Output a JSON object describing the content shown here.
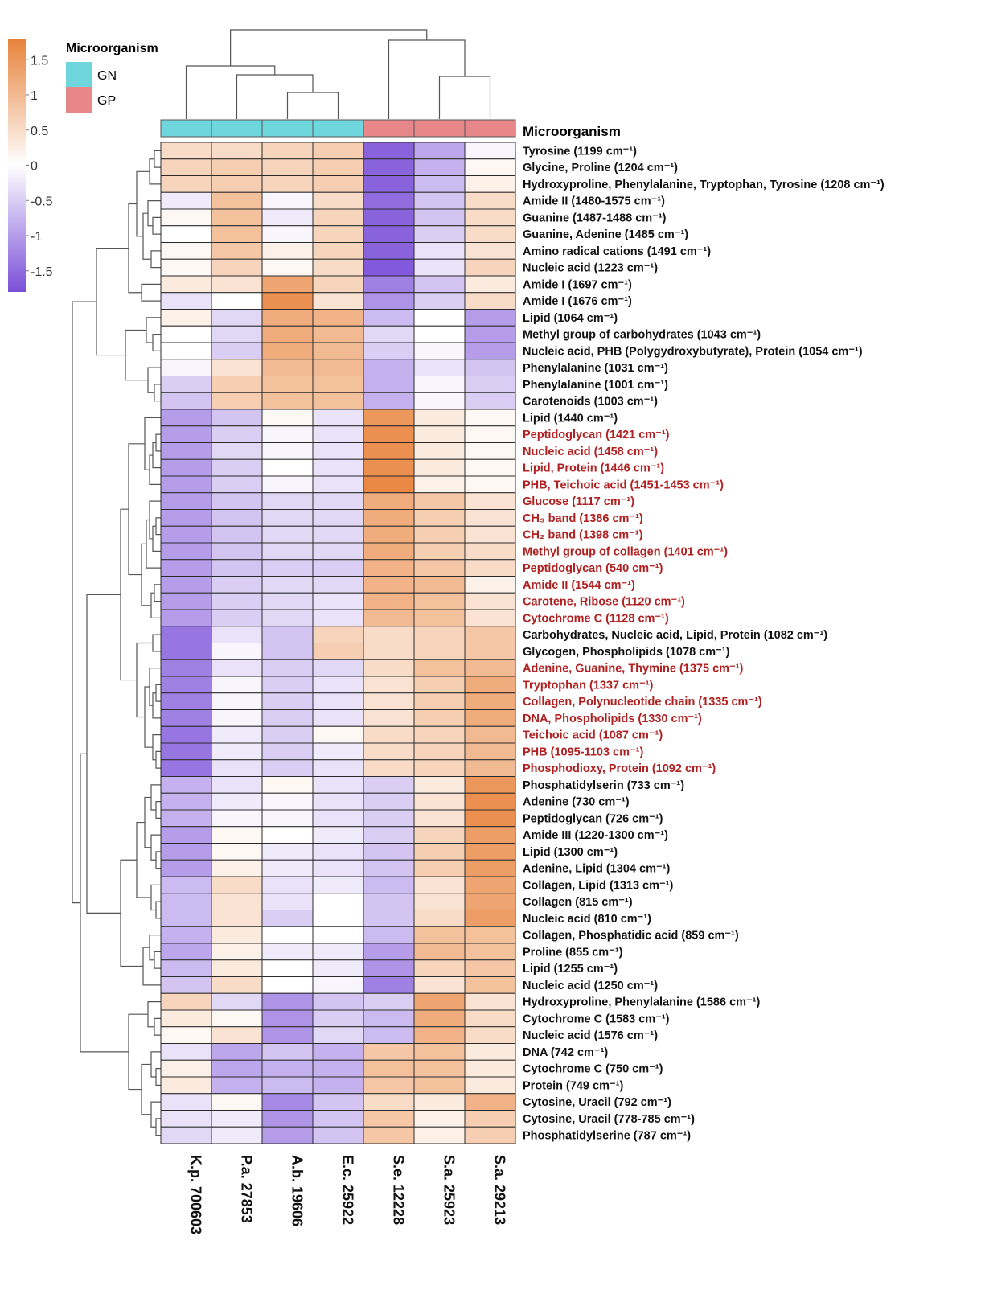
{
  "chart_data": {
    "type": "heatmap",
    "title": "",
    "annotation_title": "Microorganism",
    "legend": {
      "title": "Microorganism",
      "entries": [
        {
          "label": "GN",
          "color": "#6ed6dc"
        },
        {
          "label": "GP",
          "color": "#e8878a"
        }
      ]
    },
    "color_scale": {
      "ticks": [
        "1.5",
        "1",
        "0.5",
        "0",
        "-0.5",
        "-1",
        "-1.5"
      ],
      "tick_values": [
        1.5,
        1,
        0.5,
        0,
        -0.5,
        -1,
        -1.5
      ],
      "min": -1.8,
      "max": 1.8,
      "low_color": "#7a4fd8",
      "mid_color": "#ffffff",
      "high_color": "#e8823a"
    },
    "columns": [
      {
        "label": "K.p. 700603",
        "group": "GN"
      },
      {
        "label": "P.a. 27853",
        "group": "GN"
      },
      {
        "label": "A.b. 19606",
        "group": "GN"
      },
      {
        "label": "E.c. 25922",
        "group": "GN"
      },
      {
        "label": "S.e. 12228",
        "group": "GP"
      },
      {
        "label": "S.a. 25923",
        "group": "GP"
      },
      {
        "label": "S.a. 29213",
        "group": "GP"
      }
    ],
    "highlight_color": "#b02020",
    "normal_color": "#111111",
    "rows": [
      {
        "label": "Tyrosine (1199 cm⁻¹)",
        "highlight": false,
        "values": [
          0.5,
          0.5,
          0.6,
          0.7,
          -1.6,
          -0.9,
          -0.1
        ]
      },
      {
        "label": "Glycine, Proline (1204 cm⁻¹)",
        "highlight": false,
        "values": [
          0.6,
          0.7,
          0.6,
          0.7,
          -1.6,
          -0.8,
          0.1
        ]
      },
      {
        "label": "Hydroxyproline, Phenylalanine, Tryptophan, Tyrosine (1208 cm⁻¹)",
        "highlight": false,
        "values": [
          0.6,
          0.7,
          0.6,
          0.7,
          -1.6,
          -0.7,
          0.2
        ]
      },
      {
        "label": "Amide II (1480-1575 cm⁻¹)",
        "highlight": false,
        "values": [
          -0.2,
          0.9,
          -0.1,
          0.5,
          -1.5,
          -0.6,
          0.5
        ]
      },
      {
        "label": "Guanine (1487-1488 cm⁻¹)",
        "highlight": false,
        "values": [
          0.1,
          0.9,
          -0.2,
          0.6,
          -1.6,
          -0.6,
          0.5
        ]
      },
      {
        "label": "Guanine, Adenine (1485 cm⁻¹)",
        "highlight": false,
        "values": [
          0.0,
          0.9,
          -0.1,
          0.6,
          -1.6,
          -0.5,
          0.5
        ]
      },
      {
        "label": "Amino radical cations (1491 cm⁻¹)",
        "highlight": false,
        "values": [
          0.1,
          0.8,
          0.2,
          0.6,
          -1.6,
          -0.3,
          0.4
        ]
      },
      {
        "label": "Nucleic acid (1223 cm⁻¹)",
        "highlight": false,
        "values": [
          0.1,
          0.6,
          0.1,
          0.5,
          -1.7,
          -0.3,
          0.6
        ]
      },
      {
        "label": "Amide I (1697 cm⁻¹)",
        "highlight": false,
        "values": [
          0.3,
          0.4,
          1.3,
          0.6,
          -1.3,
          -0.6,
          0.3
        ]
      },
      {
        "label": "Amide I (1676 cm⁻¹)",
        "highlight": false,
        "values": [
          -0.3,
          0.0,
          1.6,
          0.4,
          -1.1,
          -0.5,
          0.5
        ]
      },
      {
        "label": "Lipid (1064 cm⁻¹)",
        "highlight": false,
        "values": [
          0.2,
          -0.4,
          1.2,
          1.1,
          -0.7,
          0.0,
          -1.0
        ]
      },
      {
        "label": "Methyl group of carbohydrates (1043 cm⁻¹)",
        "highlight": false,
        "values": [
          0.0,
          -0.4,
          1.2,
          1.0,
          -0.4,
          0.0,
          -1.0
        ]
      },
      {
        "label": "Nucleic acid, PHB (Polygydroxybutyrate), Protein (1054 cm⁻¹)",
        "highlight": false,
        "values": [
          0.0,
          -0.5,
          1.2,
          1.0,
          -0.5,
          -0.1,
          -1.0
        ]
      },
      {
        "label": "Phenylalanine (1031 cm⁻¹)",
        "highlight": false,
        "values": [
          -0.1,
          0.4,
          1.0,
          1.0,
          -0.8,
          -0.3,
          -0.6
        ]
      },
      {
        "label": "Phenylalanine (1001 cm⁻¹)",
        "highlight": false,
        "values": [
          -0.5,
          0.7,
          0.9,
          0.9,
          -0.8,
          -0.1,
          -0.5
        ]
      },
      {
        "label": "Carotenoids (1003 cm⁻¹)",
        "highlight": false,
        "values": [
          -0.6,
          0.7,
          0.9,
          0.9,
          -0.8,
          -0.1,
          -0.5
        ]
      },
      {
        "label": "Lipid (1440 cm⁻¹)",
        "highlight": false,
        "values": [
          -1.0,
          -0.6,
          0.1,
          -0.3,
          1.5,
          0.3,
          0.1
        ]
      },
      {
        "label": "Peptidoglycan (1421 cm⁻¹)",
        "highlight": true,
        "values": [
          -1.0,
          -0.5,
          -0.1,
          -0.3,
          1.6,
          0.3,
          0.1
        ]
      },
      {
        "label": "Nucleic acid (1458 cm⁻¹)",
        "highlight": true,
        "values": [
          -1.0,
          -0.4,
          -0.1,
          -0.3,
          1.6,
          0.3,
          0.1
        ]
      },
      {
        "label": "Lipid, Protein (1446 cm⁻¹)",
        "highlight": true,
        "values": [
          -1.0,
          -0.5,
          0.0,
          -0.3,
          1.6,
          0.3,
          0.1
        ]
      },
      {
        "label": "PHB, Teichoic acid (1451-1453 cm⁻¹)",
        "highlight": true,
        "values": [
          -1.0,
          -0.5,
          -0.1,
          -0.3,
          1.7,
          0.2,
          0.1
        ]
      },
      {
        "label": "Glucose (1117 cm⁻¹)",
        "highlight": true,
        "values": [
          -1.0,
          -0.6,
          -0.4,
          -0.4,
          1.2,
          0.8,
          0.4
        ]
      },
      {
        "label": "CH₃ band (1386 cm⁻¹)",
        "highlight": true,
        "values": [
          -1.0,
          -0.6,
          -0.4,
          -0.4,
          1.2,
          0.7,
          0.4
        ]
      },
      {
        "label": "CH₂ band (1398 cm⁻¹)",
        "highlight": true,
        "values": [
          -1.0,
          -0.6,
          -0.4,
          -0.4,
          1.2,
          0.7,
          0.4
        ]
      },
      {
        "label": "Methyl group of collagen (1401 cm⁻¹)",
        "highlight": true,
        "values": [
          -1.0,
          -0.6,
          -0.4,
          -0.4,
          1.2,
          0.7,
          0.5
        ]
      },
      {
        "label": "Peptidoglycan (540 cm⁻¹)",
        "highlight": true,
        "values": [
          -1.0,
          -0.6,
          -0.5,
          -0.5,
          1.1,
          0.8,
          0.5
        ]
      },
      {
        "label": "Amide II (1544 cm⁻¹)",
        "highlight": true,
        "values": [
          -1.0,
          -0.5,
          -0.4,
          -0.4,
          1.1,
          1.0,
          0.2
        ]
      },
      {
        "label": "Carotene, Ribose (1120 cm⁻¹)",
        "highlight": true,
        "values": [
          -1.0,
          -0.5,
          -0.4,
          -0.3,
          1.1,
          0.9,
          0.4
        ]
      },
      {
        "label": "Cytochrome C (1128 cm⁻¹)",
        "highlight": true,
        "values": [
          -1.0,
          -0.5,
          -0.4,
          -0.3,
          1.0,
          0.9,
          0.4
        ]
      },
      {
        "label": "Carbohydrates, Nucleic acid, Lipid, Protein (1082 cm⁻¹)",
        "highlight": false,
        "values": [
          -1.4,
          -0.3,
          -0.6,
          0.6,
          0.5,
          0.6,
          0.8
        ]
      },
      {
        "label": "Glycogen, Phospholipids (1078 cm⁻¹)",
        "highlight": false,
        "values": [
          -1.4,
          -0.1,
          -0.6,
          0.7,
          0.5,
          0.6,
          0.8
        ]
      },
      {
        "label": "Adenine, Guanine, Thymine (1375 cm⁻¹)",
        "highlight": true,
        "values": [
          -1.3,
          -0.3,
          -0.5,
          -0.4,
          0.5,
          0.9,
          1.0
        ]
      },
      {
        "label": "Tryptophan (1337 cm⁻¹)",
        "highlight": true,
        "values": [
          -1.3,
          -0.1,
          -0.5,
          -0.3,
          0.4,
          0.7,
          1.2
        ]
      },
      {
        "label": "Collagen, Polynucleotide chain (1335 cm⁻¹)",
        "highlight": true,
        "values": [
          -1.3,
          -0.1,
          -0.5,
          -0.3,
          0.4,
          0.7,
          1.2
        ]
      },
      {
        "label": "DNA, Phospholipids (1330 cm⁻¹)",
        "highlight": true,
        "values": [
          -1.3,
          -0.1,
          -0.5,
          -0.3,
          0.4,
          0.7,
          1.2
        ]
      },
      {
        "label": "Teichoic acid (1087 cm⁻¹)",
        "highlight": true,
        "values": [
          -1.4,
          -0.2,
          -0.5,
          0.1,
          0.5,
          0.6,
          1.0
        ]
      },
      {
        "label": "PHB (1095-1103 cm⁻¹)",
        "highlight": true,
        "values": [
          -1.4,
          -0.2,
          -0.5,
          -0.2,
          0.5,
          0.6,
          1.0
        ]
      },
      {
        "label": "Phosphodioxy, Protein (1092 cm⁻¹)",
        "highlight": true,
        "values": [
          -1.4,
          -0.3,
          -0.5,
          -0.3,
          0.5,
          0.6,
          1.0
        ]
      },
      {
        "label": "Phosphatidylserin (733 cm⁻¹)",
        "highlight": false,
        "values": [
          -0.8,
          -0.3,
          0.1,
          -0.3,
          -0.5,
          0.3,
          1.5
        ]
      },
      {
        "label": "Adenine (730 cm⁻¹)",
        "highlight": false,
        "values": [
          -0.8,
          -0.2,
          -0.1,
          -0.3,
          -0.5,
          0.4,
          1.6
        ]
      },
      {
        "label": "Peptidoglycan (726 cm⁻¹)",
        "highlight": false,
        "values": [
          -0.8,
          -0.1,
          -0.1,
          -0.3,
          -0.5,
          0.4,
          1.6
        ]
      },
      {
        "label": "Amide III (1220-1300 cm⁻¹)",
        "highlight": false,
        "values": [
          -1.0,
          0.1,
          0.0,
          -0.2,
          -0.5,
          0.6,
          1.4
        ]
      },
      {
        "label": "Lipid (1300 cm⁻¹)",
        "highlight": false,
        "values": [
          -1.0,
          0.1,
          -0.2,
          -0.3,
          -0.6,
          0.7,
          1.4
        ]
      },
      {
        "label": "Adenine, Lipid (1304 cm⁻¹)",
        "highlight": false,
        "values": [
          -1.0,
          0.2,
          -0.2,
          -0.3,
          -0.6,
          0.7,
          1.4
        ]
      },
      {
        "label": "Collagen, Lipid (1313 cm⁻¹)",
        "highlight": false,
        "values": [
          -0.7,
          0.5,
          -0.3,
          -0.2,
          -0.7,
          0.4,
          1.3
        ]
      },
      {
        "label": "Collagen (815 cm⁻¹)",
        "highlight": false,
        "values": [
          -0.7,
          0.4,
          -0.3,
          0.0,
          -0.6,
          0.4,
          1.3
        ]
      },
      {
        "label": "Nucleic acid (810 cm⁻¹)",
        "highlight": false,
        "values": [
          -0.7,
          0.4,
          -0.5,
          0.0,
          -0.6,
          0.5,
          1.4
        ]
      },
      {
        "label": "Collagen, Phosphatidic acid (859 cm⁻¹)",
        "highlight": false,
        "values": [
          -0.8,
          0.3,
          0.0,
          0.0,
          -0.7,
          0.9,
          0.9
        ]
      },
      {
        "label": "Proline (855 cm⁻¹)",
        "highlight": false,
        "values": [
          -0.9,
          0.2,
          -0.2,
          -0.2,
          -1.0,
          1.0,
          0.9
        ]
      },
      {
        "label": "Lipid (1255 cm⁻¹)",
        "highlight": false,
        "values": [
          -0.7,
          0.3,
          0.0,
          -0.2,
          -1.1,
          0.6,
          0.8
        ]
      },
      {
        "label": "Nucleic acid (1250 cm⁻¹)",
        "highlight": false,
        "values": [
          -0.6,
          0.5,
          0.0,
          -0.1,
          -1.3,
          0.4,
          0.9
        ]
      },
      {
        "label": "Hydroxyproline, Phenylalanine (1586 cm⁻¹)",
        "highlight": false,
        "values": [
          0.6,
          -0.4,
          -1.1,
          -0.6,
          -0.5,
          1.3,
          0.4
        ]
      },
      {
        "label": "Cytochrome C (1583 cm⁻¹)",
        "highlight": false,
        "values": [
          0.3,
          0.1,
          -1.1,
          -0.5,
          -0.7,
          1.2,
          0.5
        ]
      },
      {
        "label": "Nucleic acid (1576 cm⁻¹)",
        "highlight": false,
        "values": [
          0.1,
          0.4,
          -1.1,
          -0.4,
          -0.7,
          1.1,
          0.5
        ]
      },
      {
        "label": "DNA (742 cm⁻¹)",
        "highlight": false,
        "values": [
          -0.3,
          -0.9,
          -0.6,
          -0.8,
          0.8,
          0.9,
          0.3
        ]
      },
      {
        "label": "Cytochrome C (750 cm⁻¹)",
        "highlight": false,
        "values": [
          0.2,
          -0.9,
          -0.8,
          -0.8,
          0.9,
          0.9,
          0.3
        ]
      },
      {
        "label": "Protein (749 cm⁻¹)",
        "highlight": false,
        "values": [
          0.3,
          -0.8,
          -0.7,
          -0.8,
          0.8,
          0.9,
          0.3
        ]
      },
      {
        "label": "Cytosine, Uracil (792 cm⁻¹)",
        "highlight": false,
        "values": [
          -0.3,
          0.1,
          -1.2,
          -0.6,
          0.5,
          0.3,
          1.1
        ]
      },
      {
        "label": "Cytosine, Uracil (778-785 cm⁻¹)",
        "highlight": false,
        "values": [
          -0.3,
          -0.2,
          -1.1,
          -0.6,
          0.8,
          0.2,
          0.7
        ]
      },
      {
        "label": "Phosphatidylserine (787 cm⁻¹)",
        "highlight": false,
        "values": [
          -0.4,
          -0.2,
          -1.0,
          -0.6,
          0.8,
          0.2,
          0.7
        ]
      }
    ]
  }
}
